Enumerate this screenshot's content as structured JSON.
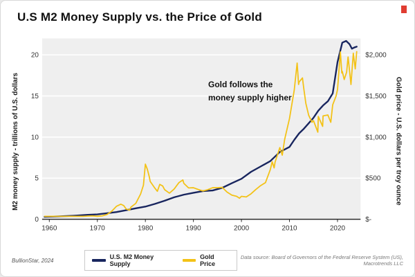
{
  "title": "U.S M2 Money Supply vs. the Price of Gold",
  "annotation": {
    "line1": "Gold follows the",
    "line2": "money supply higher"
  },
  "footer": {
    "credit": "BullionStar, 2024",
    "source": "Data source: Board of Governors of the Federal Reserve System (US), Macrotrends LLC"
  },
  "chart_data": {
    "type": "line",
    "title": "U.S M2 Money Supply vs. the Price of Gold",
    "ylabel_left": "M2 money supply - trillions of U.S. dollars",
    "ylabel_right": "Gold price - U.S. dollars per troy ounce",
    "xlim": [
      1958.5,
      2024.8
    ],
    "ylim_left": [
      0,
      22
    ],
    "ylim_right": [
      0,
      2200
    ],
    "xticks": [
      1960,
      1970,
      1980,
      1990,
      2000,
      2010,
      2020
    ],
    "yticks_left": {
      "values": [
        0,
        5,
        10,
        15,
        20
      ],
      "labels": [
        "0",
        "5",
        "10",
        "15",
        "20"
      ]
    },
    "yticks_right": {
      "values": [
        0,
        500,
        1000,
        1500,
        2000
      ],
      "labels": [
        "$-",
        "$500",
        "$1,000",
        "$1,500",
        "$2,000"
      ]
    },
    "grid": "horizontal",
    "plot_bg": "#efefef",
    "grid_color": "#ffffff",
    "axis_color": "#2b2b2b",
    "legend_position": "bottom-center",
    "series": [
      {
        "name": "U.S. M2 Money Supply",
        "color": "#18255e",
        "axis": "left",
        "stroke_width": 2.4,
        "points": [
          [
            1959,
            0.29
          ],
          [
            1962,
            0.35
          ],
          [
            1965,
            0.43
          ],
          [
            1968,
            0.54
          ],
          [
            1970,
            0.6
          ],
          [
            1972,
            0.73
          ],
          [
            1974,
            0.87
          ],
          [
            1976,
            1.1
          ],
          [
            1978,
            1.33
          ],
          [
            1980,
            1.54
          ],
          [
            1982,
            1.87
          ],
          [
            1984,
            2.25
          ],
          [
            1986,
            2.67
          ],
          [
            1988,
            2.99
          ],
          [
            1990,
            3.22
          ],
          [
            1992,
            3.43
          ],
          [
            1994,
            3.5
          ],
          [
            1996,
            3.82
          ],
          [
            1998,
            4.38
          ],
          [
            2000,
            4.92
          ],
          [
            2002,
            5.77
          ],
          [
            2004,
            6.42
          ],
          [
            2006,
            7.07
          ],
          [
            2008,
            8.19
          ],
          [
            2009,
            8.49
          ],
          [
            2010,
            8.8
          ],
          [
            2011,
            9.66
          ],
          [
            2012,
            10.45
          ],
          [
            2013,
            11.02
          ],
          [
            2014,
            11.67
          ],
          [
            2015,
            12.34
          ],
          [
            2016,
            13.21
          ],
          [
            2017,
            13.85
          ],
          [
            2018,
            14.36
          ],
          [
            2019,
            15.32
          ],
          [
            2020,
            19.13
          ],
          [
            2021,
            21.49
          ],
          [
            2021.8,
            21.7
          ],
          [
            2022.5,
            21.3
          ],
          [
            2023,
            20.75
          ],
          [
            2023.5,
            20.9
          ],
          [
            2024,
            21.0
          ]
        ]
      },
      {
        "name": "Gold Price",
        "color": "#f3c217",
        "axis": "right",
        "stroke_width": 1.8,
        "points": [
          [
            1959,
            35
          ],
          [
            1967,
            35
          ],
          [
            1968,
            39
          ],
          [
            1969,
            41
          ],
          [
            1970,
            36
          ],
          [
            1971,
            41
          ],
          [
            1972,
            58
          ],
          [
            1973,
            97
          ],
          [
            1974,
            159
          ],
          [
            1974.9,
            183
          ],
          [
            1975.5,
            165
          ],
          [
            1976,
            125
          ],
          [
            1976.7,
            110
          ],
          [
            1977,
            148
          ],
          [
            1978,
            193
          ],
          [
            1979,
            307
          ],
          [
            1979.6,
            415
          ],
          [
            1980,
            670
          ],
          [
            1980.4,
            610
          ],
          [
            1980.8,
            520
          ],
          [
            1981,
            460
          ],
          [
            1982,
            376
          ],
          [
            1982.5,
            340
          ],
          [
            1983,
            424
          ],
          [
            1983.6,
            405
          ],
          [
            1984,
            360
          ],
          [
            1985,
            317
          ],
          [
            1986,
            368
          ],
          [
            1987,
            447
          ],
          [
            1987.8,
            478
          ],
          [
            1988,
            437
          ],
          [
            1989,
            381
          ],
          [
            1990,
            384
          ],
          [
            1991,
            362
          ],
          [
            1992,
            344
          ],
          [
            1993,
            360
          ],
          [
            1994,
            384
          ],
          [
            1995,
            384
          ],
          [
            1996,
            388
          ],
          [
            1997,
            331
          ],
          [
            1998,
            294
          ],
          [
            1999,
            279
          ],
          [
            1999.6,
            256
          ],
          [
            2000,
            279
          ],
          [
            2001,
            271
          ],
          [
            2002,
            310
          ],
          [
            2003,
            363
          ],
          [
            2004,
            410
          ],
          [
            2005,
            445
          ],
          [
            2006,
            603
          ],
          [
            2006.4,
            700
          ],
          [
            2006.8,
            625
          ],
          [
            2007,
            695
          ],
          [
            2008,
            872
          ],
          [
            2008.5,
            780
          ],
          [
            2009,
            972
          ],
          [
            2010,
            1225
          ],
          [
            2011,
            1572
          ],
          [
            2011.6,
            1900
          ],
          [
            2011.9,
            1640
          ],
          [
            2012,
            1669
          ],
          [
            2012.7,
            1720
          ],
          [
            2013,
            1580
          ],
          [
            2013.4,
            1411
          ],
          [
            2014,
            1266
          ],
          [
            2014.7,
            1180
          ],
          [
            2015,
            1200
          ],
          [
            2015.9,
            1060
          ],
          [
            2016,
            1251
          ],
          [
            2016.9,
            1130
          ],
          [
            2017,
            1257
          ],
          [
            2018,
            1269
          ],
          [
            2018.6,
            1180
          ],
          [
            2019,
            1393
          ],
          [
            2019.7,
            1500
          ],
          [
            2020,
            1580
          ],
          [
            2020.6,
            2035
          ],
          [
            2020.9,
            1780
          ],
          [
            2021,
            1799
          ],
          [
            2021.4,
            1700
          ],
          [
            2021.9,
            1790
          ],
          [
            2022.2,
            1975
          ],
          [
            2022.8,
            1640
          ],
          [
            2023.3,
            2020
          ],
          [
            2023.7,
            1830
          ],
          [
            2024,
            2040
          ]
        ]
      }
    ]
  }
}
